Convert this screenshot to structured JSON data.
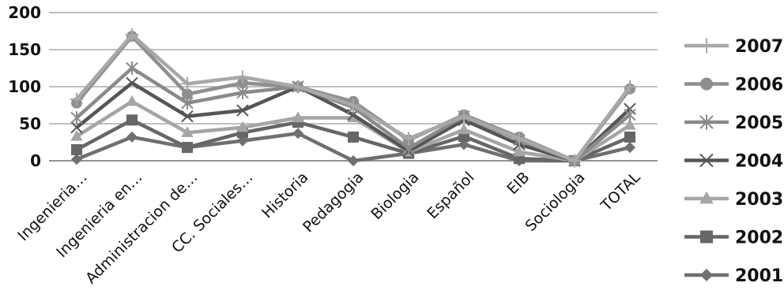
{
  "chart_data": {
    "type": "line",
    "title": "",
    "xlabel": "",
    "ylabel": "",
    "categories": [
      "Ingenieria…",
      "Ingenieria en…",
      "Administracion de…",
      "CC. Sociales…",
      "Historia",
      "Pedagogia",
      "Biologia",
      "Español",
      "EIB",
      "Sociologia",
      "TOTAL"
    ],
    "ylim": [
      0,
      200
    ],
    "yticks": [
      0,
      50,
      100,
      150,
      200
    ],
    "grid": true,
    "legend_position": "right",
    "series": [
      {
        "name": "2007",
        "marker": "plus",
        "color": "#a8a8a8",
        "values": [
          83,
          170,
          104,
          113,
          100,
          75,
          30,
          60,
          30,
          0,
          100
        ]
      },
      {
        "name": "2006",
        "marker": "circle",
        "color": "#8f8f8f",
        "values": [
          78,
          168,
          90,
          105,
          100,
          80,
          28,
          62,
          32,
          0,
          97
        ]
      },
      {
        "name": "2005",
        "marker": "asterisk",
        "color": "#8a8a8a",
        "values": [
          58,
          125,
          78,
          92,
          100,
          72,
          17,
          60,
          28,
          0,
          62
        ]
      },
      {
        "name": "2004",
        "marker": "x",
        "color": "#555555",
        "values": [
          45,
          105,
          60,
          68,
          100,
          62,
          13,
          55,
          22,
          0,
          70
        ]
      },
      {
        "name": "2003",
        "marker": "triangle",
        "color": "#a5a5a5",
        "values": [
          33,
          80,
          38,
          45,
          58,
          58,
          12,
          42,
          12,
          0,
          48
        ]
      },
      {
        "name": "2002",
        "marker": "square",
        "color": "#666666",
        "values": [
          15,
          55,
          18,
          38,
          52,
          32,
          10,
          33,
          3,
          0,
          32
        ]
      },
      {
        "name": "2001",
        "marker": "diamond",
        "color": "#6f6f6f",
        "values": [
          2,
          32,
          18,
          27,
          37,
          0,
          10,
          22,
          0,
          0,
          18
        ]
      }
    ]
  }
}
